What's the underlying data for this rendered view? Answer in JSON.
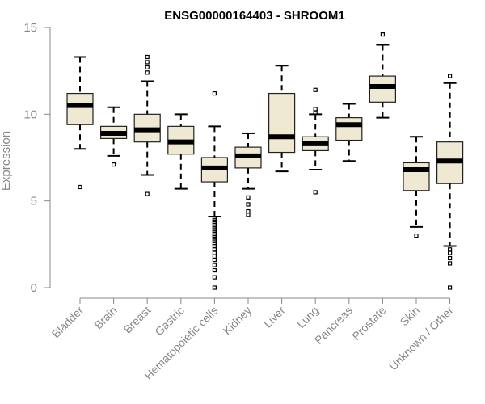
{
  "chart_data": {
    "type": "boxplot",
    "title": "ENSG00000164403 - SHROOM1",
    "ylabel": "Expression",
    "xlabel": "",
    "ylim": [
      0,
      15
    ],
    "yticks": [
      0,
      5,
      10,
      15
    ],
    "style": {
      "box_fill": "#efe8d2",
      "box_stroke": "#222222",
      "median_color": "#000000",
      "axis_color": "#888888"
    },
    "categories": [
      "Bladder",
      "Brain",
      "Breast",
      "Gastric",
      "Hematopoietic cells",
      "Kidney",
      "Liver",
      "Lung",
      "Pancreas",
      "Prostate",
      "Skin",
      "Unknown / Other"
    ],
    "boxes": [
      {
        "name": "Bladder",
        "lower_whisker": 8.0,
        "q1": 9.4,
        "median": 10.5,
        "q3": 11.2,
        "upper_whisker": 13.3,
        "outliers": [
          5.8
        ]
      },
      {
        "name": "Brain",
        "lower_whisker": 7.6,
        "q1": 8.6,
        "median": 8.9,
        "q3": 9.3,
        "upper_whisker": 10.4,
        "outliers": [
          7.1
        ]
      },
      {
        "name": "Breast",
        "lower_whisker": 6.5,
        "q1": 8.4,
        "median": 9.1,
        "q3": 10.0,
        "upper_whisker": 11.9,
        "outliers": [
          5.4,
          12.4,
          12.7,
          13.0,
          13.3
        ]
      },
      {
        "name": "Gastric",
        "lower_whisker": 5.7,
        "q1": 7.7,
        "median": 8.4,
        "q3": 9.3,
        "upper_whisker": 10.0,
        "outliers": []
      },
      {
        "name": "Hematopoietic cells",
        "lower_whisker": 4.1,
        "q1": 6.1,
        "median": 6.9,
        "q3": 7.5,
        "upper_whisker": 9.3,
        "outliers": [
          11.2,
          0.0,
          0.6,
          1.0,
          1.3,
          1.6,
          1.8,
          2.0,
          2.2,
          2.4,
          2.5,
          2.7,
          2.8,
          2.9,
          3.0,
          3.1,
          3.2,
          3.3,
          3.4,
          3.5,
          3.6,
          3.7,
          3.8,
          3.9,
          4.0
        ]
      },
      {
        "name": "Kidney",
        "lower_whisker": 5.7,
        "q1": 6.9,
        "median": 7.6,
        "q3": 8.1,
        "upper_whisker": 8.9,
        "outliers": [
          4.2,
          4.4,
          4.8,
          5.2
        ]
      },
      {
        "name": "Liver",
        "lower_whisker": 6.7,
        "q1": 7.8,
        "median": 8.7,
        "q3": 11.2,
        "upper_whisker": 12.8,
        "outliers": []
      },
      {
        "name": "Lung",
        "lower_whisker": 6.8,
        "q1": 7.9,
        "median": 8.3,
        "q3": 8.7,
        "upper_whisker": 10.0,
        "outliers": [
          5.5,
          10.1,
          10.3,
          11.4
        ]
      },
      {
        "name": "Pancreas",
        "lower_whisker": 7.3,
        "q1": 8.5,
        "median": 9.4,
        "q3": 9.8,
        "upper_whisker": 10.6,
        "outliers": []
      },
      {
        "name": "Prostate",
        "lower_whisker": 9.8,
        "q1": 10.7,
        "median": 11.6,
        "q3": 12.2,
        "upper_whisker": 14.0,
        "outliers": [
          14.6
        ]
      },
      {
        "name": "Skin",
        "lower_whisker": 3.5,
        "q1": 5.6,
        "median": 6.8,
        "q3": 7.2,
        "upper_whisker": 8.7,
        "outliers": [
          3.0
        ]
      },
      {
        "name": "Unknown / Other",
        "lower_whisker": 2.4,
        "q1": 6.0,
        "median": 7.3,
        "q3": 8.4,
        "upper_whisker": 11.8,
        "outliers": [
          12.2,
          0.0,
          1.4,
          1.7,
          2.0,
          2.2
        ]
      }
    ]
  }
}
